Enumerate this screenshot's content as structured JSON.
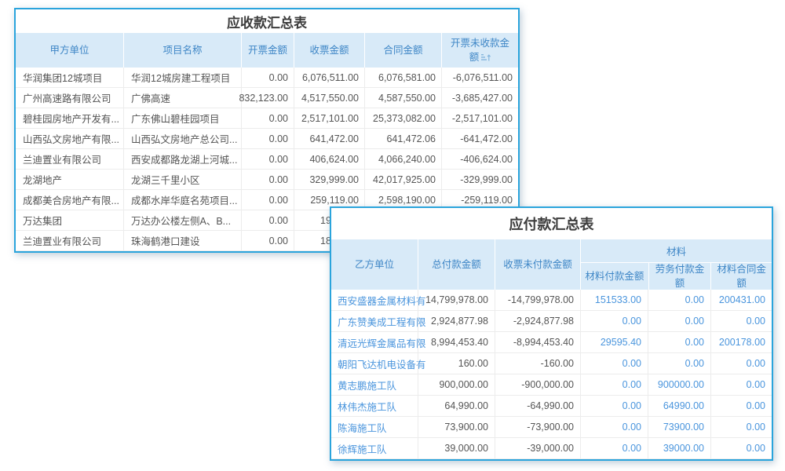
{
  "colors": {
    "card_border": "#2aa4dc",
    "header_bg": "#d8eaf8",
    "header_text": "#3e86c6",
    "link_text": "#4a95dd",
    "body_text": "#555555",
    "title_text": "#3c3c3c"
  },
  "receivable_table": {
    "title": "应收款汇总表",
    "columns": [
      "甲方单位",
      "项目名称",
      "开票金额",
      "收票金额",
      "合同金额",
      "开票未收款金额"
    ],
    "sort_icon": "sort-asc-icon",
    "rows": [
      [
        "华润集团12城项目",
        "华润12城房建工程项目",
        "0.00",
        "6,076,511.00",
        "6,076,581.00",
        "-6,076,511.00"
      ],
      [
        "广州高速路有限公司",
        "广佛高速",
        "832,123.00",
        "4,517,550.00",
        "4,587,550.00",
        "-3,685,427.00"
      ],
      [
        "碧桂园房地产开发有...",
        "广东佛山碧桂园项目",
        "0.00",
        "2,517,101.00",
        "25,373,082.00",
        "-2,517,101.00"
      ],
      [
        "山西弘文房地产有限...",
        "山西弘文房地产总公司...",
        "0.00",
        "641,472.00",
        "641,472.06",
        "-641,472.00"
      ],
      [
        "兰迪置业有限公司",
        "西安成都路龙湖上河城...",
        "0.00",
        "406,624.00",
        "4,066,240.00",
        "-406,624.00"
      ],
      [
        "龙湖地产",
        "龙湖三千里小区",
        "0.00",
        "329,999.00",
        "42,017,925.00",
        "-329,999.00"
      ],
      [
        "成都美合房地产有限...",
        "成都水岸华庭名苑项目...",
        "0.00",
        "259,119.00",
        "2,598,190.00",
        "-259,119.00"
      ],
      [
        "万达集团",
        "万达办公楼左侧A、B...",
        "0.00",
        "19",
        "",
        ""
      ],
      [
        "兰迪置业有限公司",
        "珠海鹤港口建设",
        "0.00",
        "18",
        "",
        ""
      ]
    ]
  },
  "payable_table": {
    "title": "应付款汇总表",
    "columns_main": [
      "乙方单位",
      "总付款金额",
      "收票未付款金额"
    ],
    "column_group": "材料",
    "columns_sub": [
      "材料付款金额",
      "劳务付款金额",
      "材料合同金额"
    ],
    "rows": [
      [
        "西安盛器金属材料有",
        "14,799,978.00",
        "-14,799,978.00",
        "151533.00",
        "0.00",
        "200431.00"
      ],
      [
        "广东赞美成工程有限",
        "2,924,877.98",
        "-2,924,877.98",
        "0.00",
        "0.00",
        "0.00"
      ],
      [
        "清远光辉金属品有限",
        "8,994,453.40",
        "-8,994,453.40",
        "29595.40",
        "0.00",
        "200178.00"
      ],
      [
        "朝阳飞达机电设备有",
        "160.00",
        "-160.00",
        "0.00",
        "0.00",
        "0.00"
      ],
      [
        "黄志鹏施工队",
        "900,000.00",
        "-900,000.00",
        "0.00",
        "900000.00",
        "0.00"
      ],
      [
        "林伟杰施工队",
        "64,990.00",
        "-64,990.00",
        "0.00",
        "64990.00",
        "0.00"
      ],
      [
        "陈海施工队",
        "73,900.00",
        "-73,900.00",
        "0.00",
        "73900.00",
        "0.00"
      ],
      [
        "徐辉施工队",
        "39,000.00",
        "-39,000.00",
        "0.00",
        "39000.00",
        "0.00"
      ]
    ]
  }
}
